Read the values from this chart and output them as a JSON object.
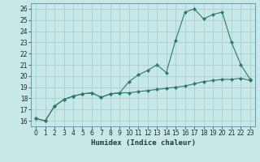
{
  "title": "",
  "xlabel": "Humidex (Indice chaleur)",
  "bg_color": "#c8e8e8",
  "line_color": "#2d7a6a",
  "grid_color": "#a8cece",
  "xlim": [
    -0.5,
    23.5
  ],
  "ylim": [
    15.5,
    26.5
  ],
  "xticks": [
    0,
    1,
    2,
    3,
    4,
    5,
    6,
    7,
    8,
    9,
    10,
    11,
    12,
    13,
    14,
    15,
    16,
    17,
    18,
    19,
    20,
    21,
    22,
    23
  ],
  "yticks": [
    16,
    17,
    18,
    19,
    20,
    21,
    22,
    23,
    24,
    25,
    26
  ],
  "series1_x": [
    0,
    1,
    2,
    3,
    4,
    5,
    6,
    7,
    8,
    9,
    10,
    11,
    12,
    13,
    14,
    15,
    16,
    17,
    18,
    19,
    20,
    21,
    22,
    23
  ],
  "series1_y": [
    16.2,
    16.0,
    17.3,
    17.9,
    18.2,
    18.4,
    18.5,
    18.1,
    18.4,
    18.5,
    18.5,
    18.6,
    18.7,
    18.8,
    18.9,
    19.0,
    19.1,
    19.3,
    19.5,
    19.6,
    19.7,
    19.7,
    19.8,
    19.6
  ],
  "series2_x": [
    0,
    1,
    2,
    3,
    4,
    5,
    6,
    7,
    8,
    9,
    10,
    11,
    12,
    13,
    14,
    15,
    16,
    17,
    18,
    19,
    20,
    21,
    22,
    23
  ],
  "series2_y": [
    16.2,
    16.0,
    17.3,
    17.9,
    18.2,
    18.4,
    18.5,
    18.1,
    18.4,
    18.5,
    19.5,
    20.1,
    20.5,
    21.0,
    20.3,
    23.2,
    25.7,
    26.0,
    25.1,
    25.5,
    25.7,
    23.0,
    21.0,
    19.7
  ]
}
